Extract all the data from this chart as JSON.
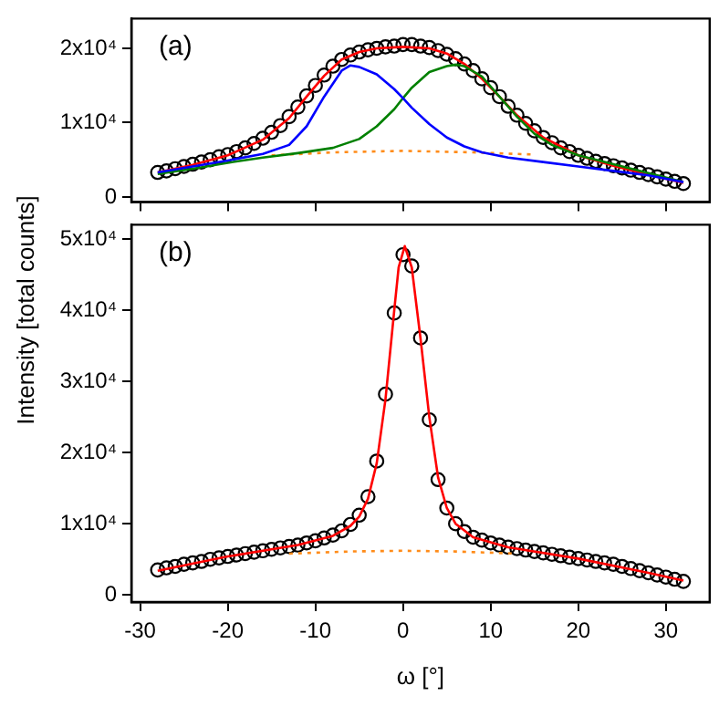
{
  "chart_data": [
    {
      "type": "scatter",
      "annotations": [
        "(a)"
      ],
      "xlim": [
        -31,
        35
      ],
      "ylim": [
        -700,
        24000
      ],
      "xticks": [
        -30,
        -20,
        -10,
        0,
        10,
        20,
        30
      ],
      "yticks": [
        0,
        {
          "value": 10000,
          "label": "1x10⁴"
        },
        {
          "value": 20000,
          "label": "2x10⁴"
        }
      ],
      "tick_labels": "y",
      "series": [
        {
          "type": "scatter",
          "color": "#000000",
          "marker": "circle",
          "x": [
            -28,
            -27,
            -26,
            -25,
            -24,
            -23,
            -22,
            -21,
            -20,
            -19,
            -18,
            -17,
            -16,
            -15,
            -14,
            -13,
            -12,
            -11,
            -10,
            -9,
            -8,
            -7,
            -6,
            -5,
            -4,
            -3,
            -2,
            -1,
            0,
            1,
            2,
            3,
            4,
            5,
            6,
            7,
            8,
            9,
            10,
            11,
            12,
            13,
            14,
            15,
            16,
            17,
            18,
            19,
            20,
            21,
            22,
            23,
            24,
            25,
            26,
            27,
            28,
            29,
            30,
            31,
            32
          ],
          "values": [
            3300,
            3500,
            3800,
            4100,
            4400,
            4700,
            5000,
            5400,
            5700,
            6100,
            6600,
            7200,
            7900,
            8700,
            9600,
            10800,
            12100,
            13600,
            15000,
            16400,
            17600,
            18500,
            19100,
            19500,
            19800,
            20000,
            20200,
            20300,
            20500,
            20500,
            20300,
            20100,
            19700,
            19200,
            18600,
            17900,
            17000,
            15900,
            14700,
            13500,
            12200,
            11000,
            9900,
            8900,
            8000,
            7300,
            6600,
            6100,
            5600,
            5200,
            4800,
            4500,
            4200,
            3900,
            3600,
            3300,
            3000,
            2700,
            2400,
            2100,
            1800
          ]
        },
        {
          "type": "line",
          "color": "#0000ff",
          "x": [
            -28,
            -24,
            -20,
            -16,
            -13,
            -11,
            -9,
            -7,
            -6,
            -5,
            -3,
            -1,
            0,
            1,
            3,
            5,
            7,
            9,
            12,
            16,
            20,
            24,
            28,
            32
          ],
          "values": [
            3300,
            4100,
            4900,
            5800,
            7000,
            9500,
            13500,
            17000,
            17700,
            17500,
            16500,
            14500,
            13300,
            12000,
            9800,
            8000,
            6800,
            6000,
            5300,
            4700,
            4100,
            3500,
            2900,
            2000
          ]
        },
        {
          "type": "line",
          "color": "#008000",
          "x": [
            -28,
            -24,
            -20,
            -16,
            -12,
            -8,
            -5,
            -3,
            -1,
            0,
            1,
            3,
            5,
            6,
            7,
            9,
            11,
            13,
            15,
            17,
            20,
            24,
            28,
            32
          ],
          "values": [
            3100,
            3800,
            4600,
            5300,
            5900,
            6600,
            7800,
            9500,
            11800,
            13300,
            14700,
            16800,
            17600,
            17800,
            17600,
            16200,
            13500,
            10800,
            8500,
            7000,
            5600,
            4400,
            3200,
            2000
          ]
        },
        {
          "type": "line",
          "color": "#ff8c1a",
          "line_style": "dotted",
          "x": [
            -15,
            -8,
            0,
            8,
            15
          ],
          "values": [
            5600,
            6000,
            6200,
            6000,
            5700
          ]
        },
        {
          "type": "line",
          "color": "#ff0000",
          "x": [
            -28,
            -24,
            -20,
            -16,
            -13,
            -11,
            -9,
            -7,
            -5,
            -3,
            0,
            3,
            5,
            7,
            9,
            11,
            13,
            16,
            20,
            24,
            28,
            32
          ],
          "values": [
            3300,
            4300,
            5600,
            7700,
            10600,
            13500,
            16300,
            18500,
            19500,
            20000,
            20200,
            20000,
            19300,
            17900,
            15900,
            13500,
            11000,
            8000,
            5600,
            4200,
            3000,
            1900
          ]
        }
      ]
    },
    {
      "type": "scatter",
      "annotations": [
        "(b)"
      ],
      "xlabel": "ω [°]",
      "ylabel": "Intensity [total counts]",
      "xlim": [
        -31,
        35
      ],
      "ylim": [
        -1000,
        52000
      ],
      "xticks": [
        -30,
        -20,
        -10,
        0,
        10,
        20,
        30
      ],
      "yticks": [
        0,
        {
          "value": 10000,
          "label": "1x10⁴"
        },
        {
          "value": 20000,
          "label": "2x10⁴"
        },
        {
          "value": 30000,
          "label": "3x10⁴"
        },
        {
          "value": 40000,
          "label": "4x10⁴"
        },
        {
          "value": 50000,
          "label": "5x10⁴"
        }
      ],
      "series": [
        {
          "type": "scatter",
          "color": "#000000",
          "marker": "circle",
          "x": [
            -28,
            -27,
            -26,
            -25,
            -24,
            -23,
            -22,
            -21,
            -20,
            -19,
            -18,
            -17,
            -16,
            -15,
            -14,
            -13,
            -12,
            -11,
            -10,
            -9,
            -8,
            -7,
            -6,
            -5,
            -4,
            -3,
            -2,
            -1,
            0,
            1,
            2,
            3,
            4,
            5,
            6,
            7,
            8,
            9,
            10,
            11,
            12,
            13,
            14,
            15,
            16,
            17,
            18,
            19,
            20,
            21,
            22,
            23,
            24,
            25,
            26,
            27,
            28,
            29,
            30,
            31,
            32
          ],
          "values": [
            3500,
            3800,
            4000,
            4300,
            4500,
            4700,
            5000,
            5200,
            5400,
            5600,
            5800,
            6000,
            6200,
            6400,
            6600,
            6800,
            7000,
            7300,
            7600,
            8000,
            8400,
            9000,
            9900,
            11200,
            13800,
            18800,
            28200,
            39600,
            47800,
            46200,
            36100,
            24600,
            16200,
            12200,
            10000,
            8900,
            8100,
            7700,
            7300,
            7000,
            6700,
            6500,
            6300,
            6100,
            5900,
            5700,
            5500,
            5300,
            5100,
            4900,
            4700,
            4500,
            4300,
            4000,
            3700,
            3400,
            3100,
            2800,
            2500,
            2200,
            1900
          ]
        },
        {
          "type": "line",
          "color": "#ff8c1a",
          "line_style": "dotted",
          "x": [
            -13,
            -6,
            0,
            6,
            13
          ],
          "values": [
            5800,
            6100,
            6200,
            6100,
            5800
          ]
        },
        {
          "type": "line",
          "color": "#ff0000",
          "x": [
            -28,
            -20,
            -12,
            -8,
            -6,
            -5,
            -4,
            -3,
            -2,
            -1,
            -0.5,
            0.2,
            1,
            2,
            3,
            4,
            5,
            6,
            8,
            12,
            20,
            28,
            32
          ],
          "values": [
            3400,
            5400,
            7000,
            8300,
            9700,
            11000,
            13500,
            18500,
            27500,
            40000,
            46000,
            49000,
            46000,
            36000,
            25000,
            16500,
            12200,
            10000,
            8100,
            6700,
            5100,
            3100,
            2000
          ]
        }
      ]
    }
  ]
}
